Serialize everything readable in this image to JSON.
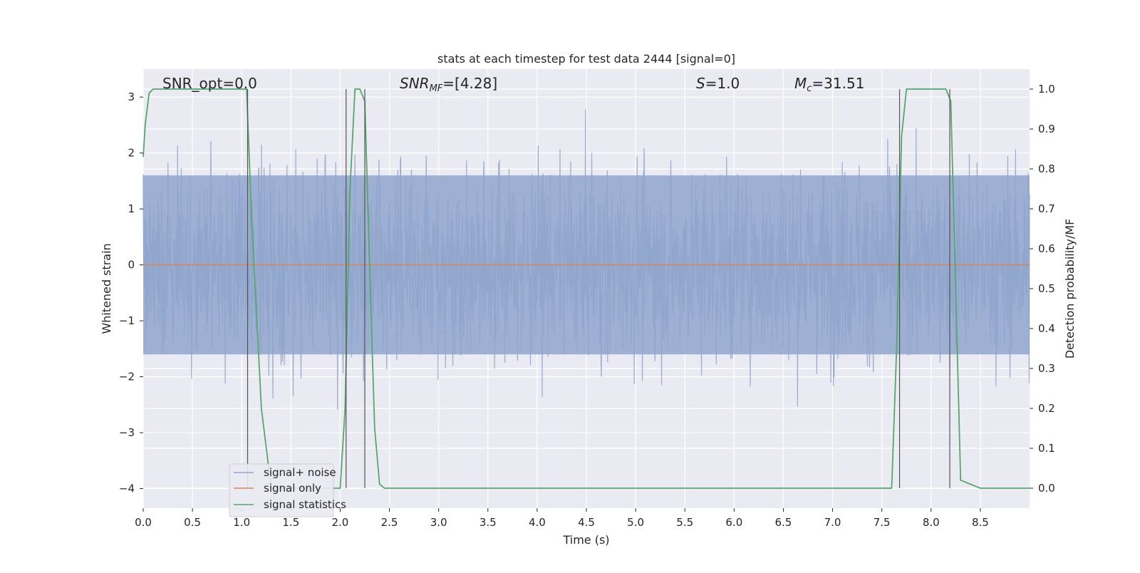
{
  "chart_data": {
    "type": "line",
    "title": "stats at each timestep for test data 2444 [signal=0]",
    "xlabel": "Time (s)",
    "ylabel": "Whitened strain",
    "y2label": "Detection probability/MF",
    "xlim": [
      0.0,
      9.0
    ],
    "ylim": [
      -4.35,
      3.5
    ],
    "y2lim": [
      -0.05,
      1.05
    ],
    "xticks": [
      "0.0",
      "0.5",
      "1.0",
      "1.5",
      "2.0",
      "2.5",
      "3.0",
      "3.5",
      "4.0",
      "4.5",
      "5.0",
      "5.5",
      "6.0",
      "6.5",
      "7.0",
      "7.5",
      "8.0",
      "8.5"
    ],
    "yticks": [
      "3",
      "2",
      "1",
      "0",
      "−1",
      "−2",
      "−3",
      "−4"
    ],
    "y2ticks": [
      "1.0",
      "0.9",
      "0.8",
      "0.7",
      "0.6",
      "0.5",
      "0.4",
      "0.3",
      "0.2",
      "0.1",
      "0.0"
    ],
    "grid": true,
    "legend_placement": "lower-left",
    "annotations": {
      "snr_opt": "SNR_opt=0.0",
      "snr_mf_sym": "SNR",
      "snr_mf_sub": "MF",
      "snr_mf_val": "=[4.28]",
      "s_sym": "S",
      "s_val": "=1.0",
      "mc_sym": "M",
      "mc_sub": "c",
      "mc_val": "=31.51"
    },
    "series": [
      {
        "name": "signal+ noise",
        "color": "#8fa4cc",
        "description_range": [
          -3.6,
          3.2
        ],
        "envelope": {
          "x": [
            0,
            9
          ],
          "lower": -1.6,
          "upper": 1.6
        }
      },
      {
        "name": "signal only",
        "color": "#dd8452",
        "x": [
          0,
          9
        ],
        "y": [
          0,
          0
        ]
      },
      {
        "name": "signal statistics",
        "color": "#55a868",
        "axis": "right",
        "x": [
          0.0,
          0.02,
          0.06,
          0.1,
          0.3,
          0.6,
          0.9,
          1.05,
          1.1,
          1.2,
          1.3,
          1.4,
          2.0,
          2.05,
          2.1,
          2.15,
          2.2,
          2.25,
          2.3,
          2.35,
          2.4,
          2.45,
          2.5,
          3.0,
          4.0,
          5.0,
          6.0,
          7.0,
          7.6,
          7.65,
          7.7,
          7.75,
          8.1,
          8.15,
          8.2,
          8.25,
          8.3,
          8.5,
          9.0
        ],
        "y": [
          0.83,
          0.91,
          0.99,
          1.0,
          1.0,
          1.0,
          1.0,
          1.0,
          0.68,
          0.2,
          0.0,
          0.0,
          0.0,
          0.2,
          0.75,
          1.0,
          1.0,
          0.97,
          0.55,
          0.15,
          0.01,
          0.0,
          0.0,
          0.0,
          0.0,
          0.0,
          0.0,
          0.0,
          0.0,
          0.35,
          0.88,
          1.0,
          1.0,
          1.0,
          0.97,
          0.5,
          0.02,
          0.0,
          0.0
        ]
      }
    ],
    "vlines": [
      1.06,
      2.06,
      2.25,
      7.68,
      8.19
    ]
  }
}
